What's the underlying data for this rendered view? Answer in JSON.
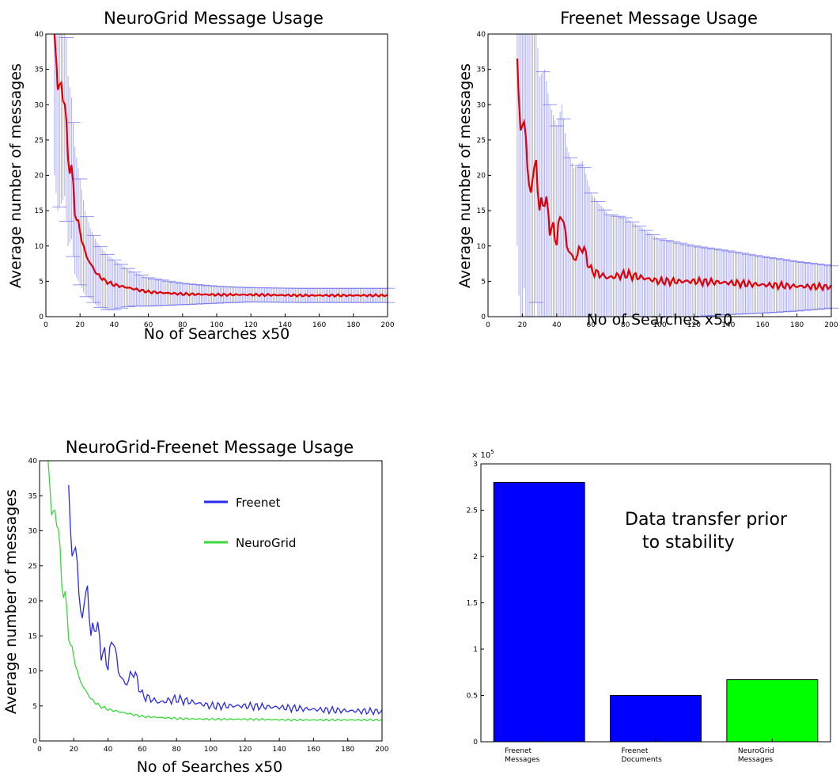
{
  "chart_data": [
    {
      "type": "line",
      "title": "NeuroGrid Message Usage",
      "xlabel": "No of Searches x50",
      "ylabel": "Average number of messages",
      "xlim": [
        0,
        200
      ],
      "ylim": [
        0,
        40
      ],
      "x_ticks": [
        0,
        20,
        40,
        60,
        80,
        100,
        120,
        140,
        160,
        180,
        200
      ],
      "y_ticks": [
        0,
        5,
        10,
        15,
        20,
        25,
        30,
        35,
        40
      ],
      "grid": false,
      "error_bars": true,
      "line_color": "#e00000",
      "errorbar_color": "#6a6af0",
      "series": [
        {
          "x": [
            5,
            7,
            9,
            11,
            13,
            15,
            17,
            19,
            21,
            23,
            26,
            30,
            35,
            40,
            50,
            60,
            80,
            100,
            120,
            150,
            200
          ],
          "y": [
            40,
            33,
            32,
            31,
            22,
            21,
            15,
            13,
            11,
            9,
            7.5,
            6,
            5,
            4.5,
            4,
            3.5,
            3.2,
            3.1,
            3.1,
            3.0,
            3.0
          ],
          "err": [
            20,
            18,
            16,
            14,
            12,
            10,
            9,
            8,
            7,
            6,
            5,
            4.5,
            4,
            3.5,
            2.5,
            2,
            1.5,
            1.2,
            1,
            1,
            1
          ]
        }
      ]
    },
    {
      "type": "line",
      "title": "Freenet Message Usage",
      "xlabel": "No of Searches x50",
      "ylabel": "Average number of messages",
      "xlim": [
        0,
        200
      ],
      "ylim": [
        0,
        40
      ],
      "x_ticks": [
        0,
        20,
        40,
        60,
        80,
        100,
        120,
        140,
        160,
        180,
        200
      ],
      "y_ticks": [
        0,
        5,
        10,
        15,
        20,
        25,
        30,
        35,
        40
      ],
      "grid": false,
      "error_bars": true,
      "line_color": "#e00000",
      "errorbar_color": "#6a6af0",
      "series": [
        {
          "x": [
            17,
            19,
            21,
            23,
            25,
            28,
            30,
            33,
            36,
            40,
            43,
            46,
            50,
            55,
            60,
            70,
            80,
            90,
            100,
            120,
            140,
            160,
            180,
            200
          ],
          "y": [
            40,
            24,
            30,
            20,
            18,
            22,
            15,
            17,
            13,
            11,
            15,
            10,
            8,
            10,
            6.5,
            5.5,
            6,
            5.5,
            5,
            5,
            4.8,
            4.5,
            4.3,
            4.2
          ],
          "err": [
            30,
            28,
            26,
            24,
            22,
            20,
            19,
            18,
            17,
            16,
            15,
            14,
            13,
            12,
            11,
            9,
            8,
            7,
            6,
            5,
            4.5,
            4,
            3.5,
            3
          ]
        }
      ]
    },
    {
      "type": "line",
      "title": "NeuroGrid-Freenet Message Usage",
      "xlabel": "No of Searches x50",
      "ylabel": "Average number of messages",
      "xlim": [
        0,
        200
      ],
      "ylim": [
        0,
        40
      ],
      "x_ticks": [
        0,
        20,
        40,
        60,
        80,
        100,
        120,
        140,
        160,
        180,
        200
      ],
      "y_ticks": [
        0,
        5,
        10,
        15,
        20,
        25,
        30,
        35,
        40
      ],
      "grid": false,
      "legend": "top-right",
      "series": [
        {
          "name": "Freenet",
          "color": "#2a2ae8",
          "x": [
            17,
            19,
            21,
            23,
            25,
            28,
            30,
            33,
            36,
            40,
            43,
            46,
            50,
            55,
            60,
            70,
            80,
            90,
            100,
            120,
            140,
            160,
            180,
            200
          ],
          "y": [
            40,
            24,
            30,
            20,
            18,
            22,
            15,
            17,
            13,
            11,
            15,
            10,
            8,
            10,
            6.5,
            5.5,
            6,
            5.5,
            5,
            5,
            4.8,
            4.5,
            4.3,
            4.2
          ]
        },
        {
          "name": "NeuroGrid",
          "color": "#3ad83a",
          "x": [
            5,
            7,
            9,
            11,
            13,
            15,
            17,
            19,
            21,
            23,
            26,
            30,
            35,
            40,
            50,
            60,
            80,
            100,
            120,
            150,
            200
          ],
          "y": [
            40,
            33,
            32,
            31,
            22,
            21,
            15,
            13,
            11,
            9,
            7.5,
            6,
            5,
            4.5,
            4,
            3.5,
            3.2,
            3.1,
            3.1,
            3.0,
            3.0
          ]
        }
      ]
    },
    {
      "type": "bar",
      "title": "",
      "xlabel": "",
      "ylabel": "",
      "y_exponent_label": "× 10",
      "y_exponent_power": "5",
      "ylim": [
        0,
        3
      ],
      "y_ticks": [
        0,
        0.5,
        1,
        1.5,
        2,
        2.5,
        3
      ],
      "annotation": [
        "Data transfer prior",
        "to stability"
      ],
      "categories": [
        [
          "Freenet",
          "Messages"
        ],
        [
          "Freenet",
          "Documents"
        ],
        [
          "NeuroGrid",
          "Messages"
        ]
      ],
      "values": [
        2.8,
        0.5,
        0.67
      ],
      "bar_colors": [
        "#0000ff",
        "#0000ff",
        "#00ff00"
      ]
    }
  ]
}
